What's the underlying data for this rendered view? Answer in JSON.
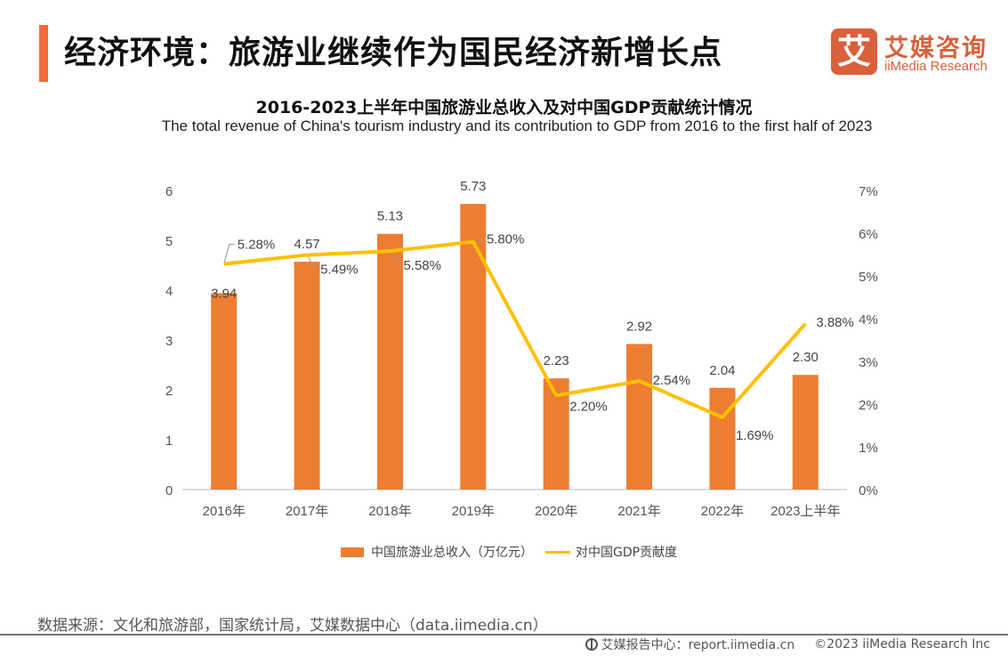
{
  "header": {
    "title": "经济环境：旅游业继续作为国民经济新增长点",
    "logo": {
      "icon_char": "艾",
      "cn": "艾媒咨询",
      "en": "iiMedia Research"
    }
  },
  "chart_data": {
    "type": "bar",
    "title": "2016-2023上半年中国旅游业总收入及对中国GDP贡献统计情况",
    "subtitle": "The total revenue of China's tourism industry and its contribution to GDP from 2016 to the first half of 2023",
    "categories": [
      "2016年",
      "2017年",
      "2018年",
      "2019年",
      "2020年",
      "2021年",
      "2022年",
      "2023上半年"
    ],
    "series": [
      {
        "name": "中国旅游业总收入（万亿元）",
        "type": "bar",
        "axis": "left",
        "color": "#ed7d31",
        "values": [
          3.94,
          4.57,
          5.13,
          5.73,
          2.23,
          2.92,
          2.04,
          2.3
        ],
        "labels": [
          "3.94",
          "4.57",
          "5.13",
          "5.73",
          "2.23",
          "2.92",
          "2.04",
          "2.30"
        ]
      },
      {
        "name": "对中国GDP贡献度",
        "type": "line",
        "axis": "right",
        "color": "#ffc000",
        "values": [
          5.28,
          5.49,
          5.58,
          5.8,
          2.2,
          2.54,
          1.69,
          3.88
        ],
        "labels": [
          "5.28%",
          "5.49%",
          "5.58%",
          "5.80%",
          "2.20%",
          "2.54%",
          "1.69%",
          "3.88%"
        ]
      }
    ],
    "y_left": {
      "min": 0,
      "max": 6,
      "ticks": [
        "0",
        "1",
        "2",
        "3",
        "4",
        "5",
        "6"
      ]
    },
    "y_right": {
      "min": 0,
      "max": 7,
      "ticks": [
        "0%",
        "1%",
        "2%",
        "3%",
        "4%",
        "5%",
        "6%",
        "7%"
      ]
    },
    "grid": false,
    "legend_position": "bottom"
  },
  "legend": {
    "bar_label": "中国旅游业总收入（万亿元）",
    "line_label": "对中国GDP贡献度"
  },
  "footer": {
    "source": "数据来源：文化和旅游部，国家统计局，艾媒数据中心（data.iimedia.cn）",
    "report_center": "艾媒报告中心：report.iimedia.cn",
    "copyright": "©2023  iiMedia Research  Inc"
  }
}
